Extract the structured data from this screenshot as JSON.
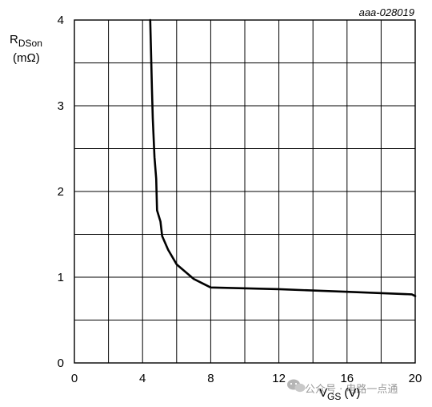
{
  "figure_id": "aaa-028019",
  "watermark": {
    "icon": "wechat-icon",
    "text": "公众号 · 电路一点通"
  },
  "chart_data": {
    "type": "line",
    "title": "",
    "xlabel": {
      "main": "V",
      "sub": "GS",
      "unit": "(V)"
    },
    "ylabel": {
      "main": "R",
      "sub": "DSon",
      "unit": "(mΩ)"
    },
    "xlim": [
      0,
      20
    ],
    "ylim": [
      0,
      4
    ],
    "x_ticks": [
      0,
      4,
      8,
      12,
      16,
      20
    ],
    "y_ticks": [
      0,
      1,
      2,
      3,
      4
    ],
    "grid": true,
    "grid_x_step": 2,
    "grid_y_step": 0.5,
    "series": [
      {
        "points": [
          [
            4.45,
            4.0
          ],
          [
            4.5,
            3.6
          ],
          [
            4.55,
            3.2
          ],
          [
            4.6,
            2.85
          ],
          [
            4.7,
            2.4
          ],
          [
            4.8,
            2.15
          ],
          [
            4.85,
            1.78
          ],
          [
            5.05,
            1.65
          ],
          [
            5.15,
            1.48
          ],
          [
            5.5,
            1.32
          ],
          [
            6.0,
            1.15
          ],
          [
            7.0,
            0.98
          ],
          [
            8.0,
            0.88
          ],
          [
            12.0,
            0.86
          ],
          [
            16.0,
            0.83
          ],
          [
            19.8,
            0.8
          ],
          [
            20.0,
            0.78
          ]
        ],
        "color": "#000000"
      }
    ]
  }
}
